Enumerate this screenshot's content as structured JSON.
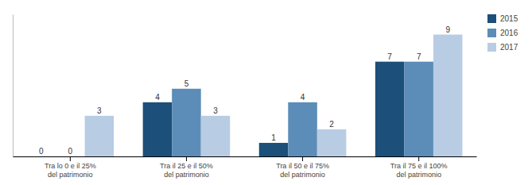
{
  "chart_data": {
    "type": "bar",
    "categories": [
      "Tra lo 0 e il 25%\ndel patrimonio",
      "Tra il 25 e il 50%\ndel patrimonio",
      "Tra il 50 e il 75%\ndel patrimonio",
      "Tra il 75 e il 100%\ndel patrimonio"
    ],
    "series": [
      {
        "name": "2015",
        "color": "#1c4f7a",
        "values": [
          0,
          4,
          1,
          7
        ]
      },
      {
        "name": "2016",
        "color": "#5b8db8",
        "values": [
          0,
          5,
          4,
          7
        ]
      },
      {
        "name": "2017",
        "color": "#b8cce4",
        "values": [
          3,
          3,
          2,
          9
        ]
      }
    ],
    "ylim": [
      0,
      10.5
    ],
    "data_labels": true,
    "tick_labels": "x",
    "grid": false,
    "legend": "right"
  }
}
